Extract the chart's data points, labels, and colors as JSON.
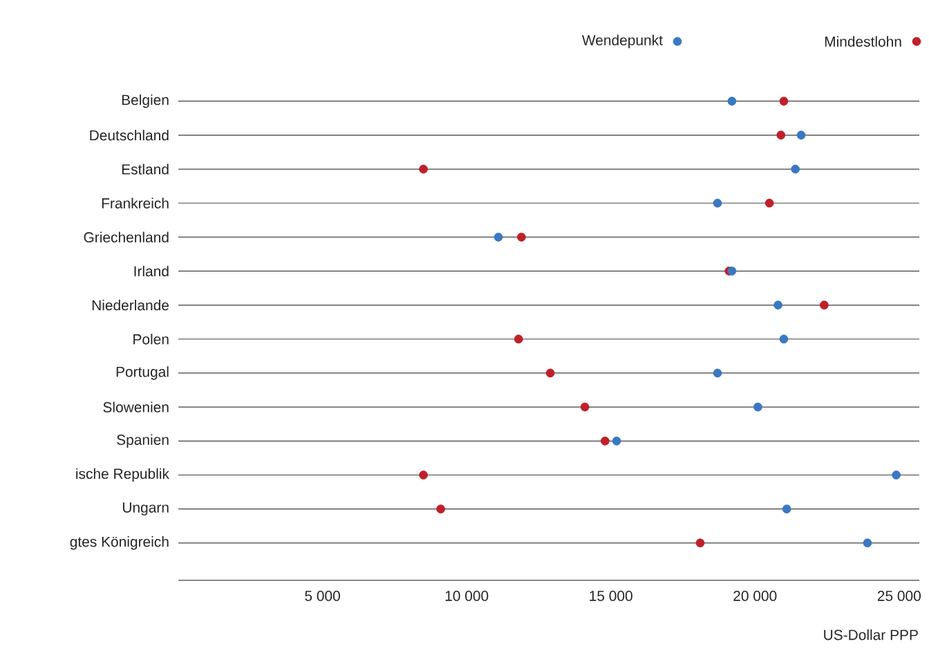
{
  "chart_data": {
    "type": "scatter",
    "orientation": "horizontal",
    "categories": [
      "Belgien",
      "Deutschland",
      "Estland",
      "Frankreich",
      "Griechenland",
      "Irland",
      "Niederlande",
      "Polen",
      "Portugal",
      "Slowenien",
      "Spanien",
      "ische Republik",
      "Ungarn",
      "gtes Königreich"
    ],
    "series": [
      {
        "name": "Wendepunkt",
        "color": "#3a78c2",
        "values": [
          19200,
          21600,
          21400,
          18700,
          11100,
          19200,
          20800,
          21000,
          18700,
          20100,
          15200,
          24900,
          21100,
          23900
        ]
      },
      {
        "name": "Mindestlohn",
        "color": "#c0202a",
        "values": [
          21000,
          20900,
          8500,
          20500,
          11900,
          19100,
          22400,
          11800,
          12900,
          14100,
          14800,
          8500,
          9100,
          18100
        ]
      }
    ],
    "xlim": [
      0,
      25700
    ],
    "xticks": [
      {
        "value": 5000,
        "label": "5 000"
      },
      {
        "value": 10000,
        "label": "10 000"
      },
      {
        "value": 15000,
        "label": "15 000"
      },
      {
        "value": 20000,
        "label": "20 000"
      },
      {
        "value": 25000,
        "label": "25 000"
      }
    ],
    "xlabel": "US-Dollar PPP",
    "grid": "y",
    "legend": "top right",
    "marker": "circle"
  }
}
